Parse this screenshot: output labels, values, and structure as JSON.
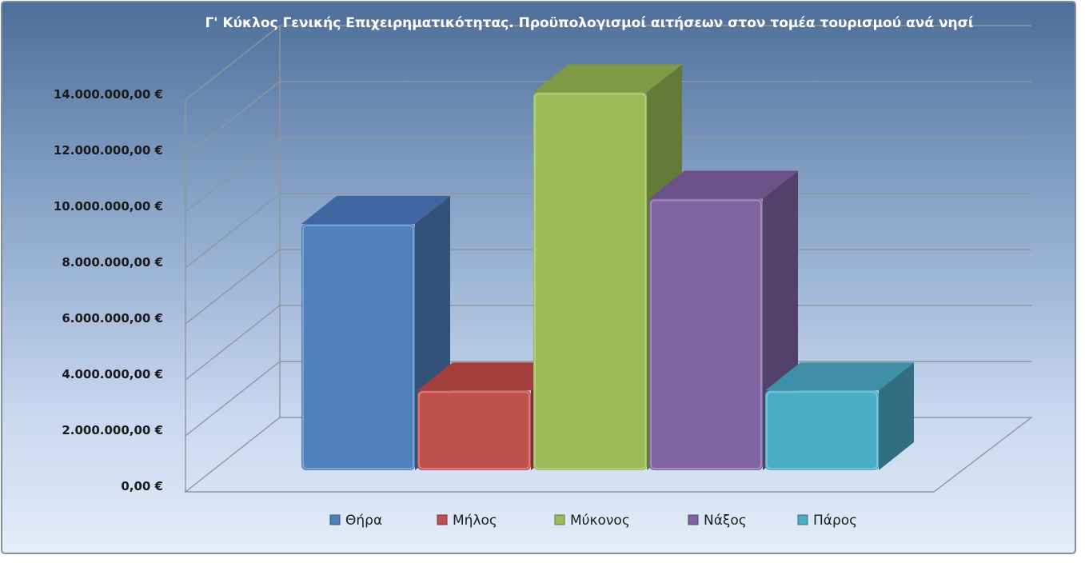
{
  "chart_data": {
    "type": "bar",
    "title": "Γ' Κύκλος Γενικής Επιχειρηματικότητας. Προϋπολογισμοί  αιτήσεων στον τομέα τουρισμού ανά νησί",
    "categories": [
      "Θήρα",
      "Μήλος",
      "Μύκονος",
      "Νάξος",
      "Πάρος"
    ],
    "values": [
      8800000,
      2850000,
      13500000,
      9700000,
      2850000
    ],
    "colors": {
      "front": [
        "#4f81bd",
        "#c0504d",
        "#9bbb59",
        "#8064a2",
        "#4bacc6"
      ],
      "side": [
        "#32527a",
        "#7c3432",
        "#637a38",
        "#524168",
        "#306e80"
      ],
      "top": [
        "#3f66a0",
        "#a23f3c",
        "#7e9a44",
        "#6a5288",
        "#3d90a8"
      ]
    },
    "ylim": [
      0,
      14000000
    ],
    "yticks": [
      0,
      2000000,
      4000000,
      6000000,
      8000000,
      10000000,
      12000000,
      14000000
    ],
    "ytick_labels": [
      "0,00 €",
      "2.000.000,00 €",
      "4.000.000,00 €",
      "6.000.000,00 €",
      "8.000.000,00 €",
      "10.000.000,00 €",
      "12.000.000,00 €",
      "14.000.000,00 €"
    ],
    "xlabel": "",
    "ylabel": "",
    "grid": true,
    "legend": {
      "position": "bottom",
      "entries": [
        "Θήρα",
        "Μήλος",
        "Μύκονος",
        "Νάξος",
        "Πάρος"
      ]
    }
  }
}
